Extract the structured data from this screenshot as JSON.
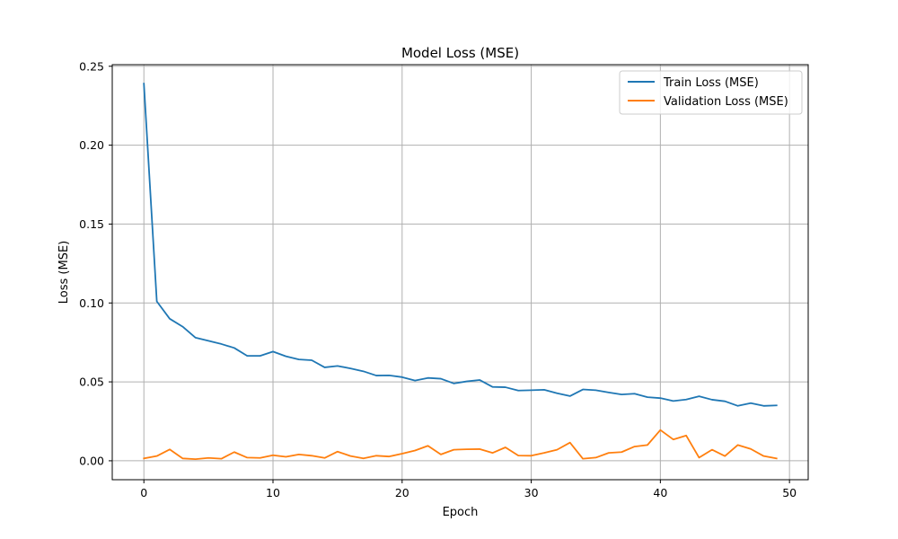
{
  "chart_data": {
    "type": "line",
    "title": "Model Loss (MSE)",
    "xlabel": "Epoch",
    "ylabel": "Loss (MSE)",
    "xlim": [
      -2.45,
      51.45
    ],
    "ylim": [
      -0.012,
      0.251
    ],
    "xticks": [
      0,
      10,
      20,
      30,
      40,
      50
    ],
    "yticks": [
      0.0,
      0.05,
      0.1,
      0.15,
      0.2,
      0.25
    ],
    "ytick_labels": [
      "0.00",
      "0.05",
      "0.10",
      "0.15",
      "0.20",
      "0.25"
    ],
    "grid": true,
    "legend": "top-right",
    "x": [
      0,
      1,
      2,
      3,
      4,
      5,
      6,
      7,
      8,
      9,
      10,
      11,
      12,
      13,
      14,
      15,
      16,
      17,
      18,
      19,
      20,
      21,
      22,
      23,
      24,
      25,
      26,
      27,
      28,
      29,
      30,
      31,
      32,
      33,
      34,
      35,
      36,
      37,
      38,
      39,
      40,
      41,
      42,
      43,
      44,
      45,
      46,
      47,
      48,
      49
    ],
    "series": [
      {
        "name": "Train Loss (MSE)",
        "color": "#1f77b4",
        "values": [
          0.239,
          0.101,
          0.09,
          0.085,
          0.078,
          0.076,
          0.074,
          0.0715,
          0.0665,
          0.0665,
          0.0692,
          0.0662,
          0.0642,
          0.0637,
          0.0592,
          0.0601,
          0.0585,
          0.0567,
          0.054,
          0.0541,
          0.053,
          0.0508,
          0.0525,
          0.052,
          0.049,
          0.0503,
          0.0512,
          0.0468,
          0.0466,
          0.0445,
          0.0447,
          0.045,
          0.0428,
          0.041,
          0.0452,
          0.0447,
          0.0433,
          0.042,
          0.0425,
          0.0403,
          0.0397,
          0.0379,
          0.0388,
          0.0409,
          0.0387,
          0.0377,
          0.0348,
          0.0365,
          0.0348,
          0.0351
        ]
      },
      {
        "name": "Validation Loss (MSE)",
        "color": "#ff7f0e",
        "values": [
          0.0015,
          0.003,
          0.0072,
          0.0015,
          0.001,
          0.0018,
          0.0013,
          0.0055,
          0.002,
          0.0018,
          0.0035,
          0.0025,
          0.004,
          0.0032,
          0.0018,
          0.0058,
          0.003,
          0.0015,
          0.0032,
          0.0027,
          0.0045,
          0.0065,
          0.0095,
          0.004,
          0.007,
          0.0073,
          0.0074,
          0.005,
          0.0085,
          0.0033,
          0.0032,
          0.005,
          0.007,
          0.0115,
          0.0013,
          0.002,
          0.005,
          0.0055,
          0.009,
          0.01,
          0.0195,
          0.0135,
          0.016,
          0.002,
          0.007,
          0.003,
          0.01,
          0.0075,
          0.003,
          0.0015
        ]
      }
    ]
  }
}
